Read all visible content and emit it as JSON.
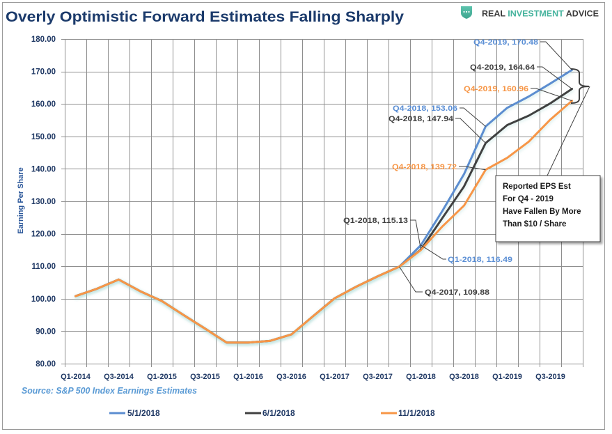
{
  "header": {
    "title": "Overly Optimistic Forward Estimates Falling Sharply"
  },
  "logo": {
    "icon": "shield-chat-icon",
    "word_1": "REAL",
    "word_2": "INVESTMENT",
    "word_3": "ADVICE",
    "accent_color": "#45B39D"
  },
  "source": "Source: S&P 500 Index Earnings Estimates",
  "callout": {
    "lines": [
      "Reported EPS Est",
      "For Q4 - 2019",
      "Have Fallen By More",
      "Than $10 / Share"
    ]
  },
  "chart_data": {
    "type": "line",
    "title": "Overly Optimistic Forward Estimates Falling Sharply",
    "xlabel": "",
    "ylabel": "Earning Per Share",
    "ylim": [
      80,
      180
    ],
    "grid": true,
    "legend": {
      "position": "bottom"
    },
    "yticks": [
      80,
      90,
      100,
      110,
      120,
      130,
      140,
      150,
      160,
      170,
      180
    ],
    "ytick_labels": [
      "80.00",
      "90.00",
      "100.00",
      "110.00",
      "120.00",
      "130.00",
      "140.00",
      "150.00",
      "160.00",
      "170.00",
      "180.00"
    ],
    "categories": [
      "Q1-2014",
      "Q2-2014",
      "Q3-2014",
      "Q4-2014",
      "Q1-2015",
      "Q2-2015",
      "Q3-2015",
      "Q4-2015",
      "Q1-2016",
      "Q2-2016",
      "Q3-2016",
      "Q4-2016",
      "Q1-2017",
      "Q2-2017",
      "Q3-2017",
      "Q4-2017",
      "Q1-2018",
      "Q2-2018",
      "Q3-2018",
      "Q4-2018",
      "Q1-2019",
      "Q2-2019",
      "Q3-2019",
      "Q4-2019"
    ],
    "xtick_labels": [
      "Q1-2014",
      "Q3-2014",
      "Q1-2015",
      "Q3-2015",
      "Q1-2016",
      "Q3-2016",
      "Q1-2017",
      "Q3-2017",
      "Q1-2018",
      "Q3-2018",
      "Q1-2019",
      "Q3-2019"
    ],
    "series": [
      {
        "name": "5/1/2018",
        "color": "#5B8DD0",
        "label_color": "#5B8FD5",
        "values": [
          100.8,
          103.1,
          105.9,
          102.3,
          99.3,
          95.0,
          90.8,
          86.5,
          86.5,
          87.0,
          89.0,
          94.6,
          100.1,
          103.7,
          106.9,
          109.88,
          116.49,
          127.1,
          138.4,
          153.06,
          158.8,
          162.3,
          166.3,
          170.48
        ]
      },
      {
        "name": "6/1/2018",
        "color": "#404040",
        "label_color": "#404040",
        "values": [
          100.8,
          103.1,
          105.9,
          102.3,
          99.3,
          95.0,
          90.8,
          86.5,
          86.5,
          87.0,
          89.0,
          94.6,
          100.1,
          103.7,
          106.9,
          109.88,
          115.13,
          124.9,
          134.6,
          147.94,
          153.5,
          156.4,
          160.2,
          164.64
        ]
      },
      {
        "name": "11/1/2018",
        "color": "#F79646",
        "label_color": "#F79646",
        "values": [
          100.8,
          103.1,
          105.9,
          102.3,
          99.3,
          95.0,
          90.8,
          86.5,
          86.5,
          87.0,
          89.0,
          94.6,
          100.1,
          103.7,
          106.9,
          109.88,
          115.0,
          122.3,
          128.7,
          139.72,
          143.4,
          148.4,
          155.2,
          160.96
        ]
      }
    ],
    "annotations": [
      {
        "series": 0,
        "category": "Q4-2019",
        "value": 170.48,
        "text": "Q4-2019, 170.48"
      },
      {
        "series": 1,
        "category": "Q4-2019",
        "value": 164.64,
        "text": "Q4-2019, 164.64"
      },
      {
        "series": 2,
        "category": "Q4-2019",
        "value": 160.96,
        "text": "Q4-2019, 160.96"
      },
      {
        "series": 0,
        "category": "Q4-2018",
        "value": 153.06,
        "text": "Q4-2018, 153.06"
      },
      {
        "series": 1,
        "category": "Q4-2018",
        "value": 147.94,
        "text": "Q4-2018, 147.94"
      },
      {
        "series": 2,
        "category": "Q4-2018",
        "value": 139.72,
        "text": "Q4-2018, 139.72"
      },
      {
        "series": 1,
        "category": "Q1-2018",
        "value": 115.13,
        "text": "Q1-2018, 115.13"
      },
      {
        "series": 0,
        "category": "Q1-2018",
        "value": 116.49,
        "text": "Q1-2018, 116.49"
      },
      {
        "series": 1,
        "category": "Q4-2017",
        "value": 109.88,
        "text": "Q4-2017, 109.88"
      }
    ]
  }
}
